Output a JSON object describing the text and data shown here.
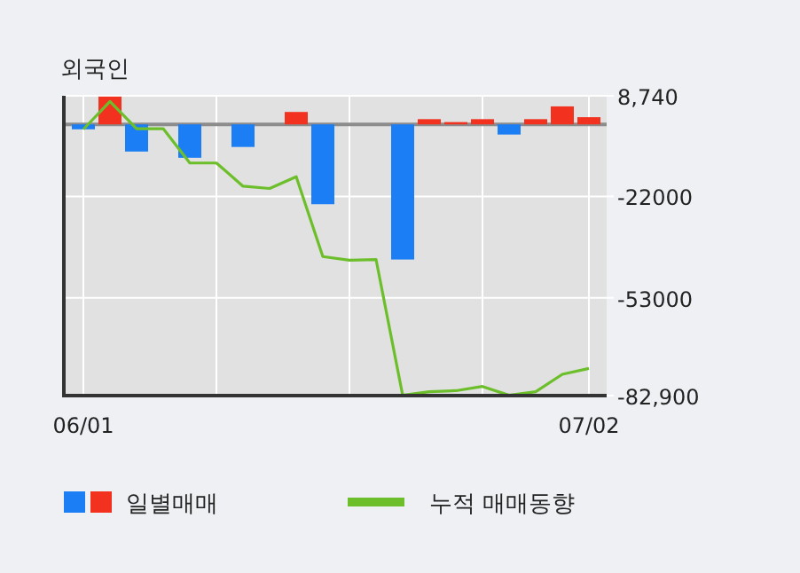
{
  "chart_data": {
    "type": "bar",
    "title": "외국인",
    "categories": [
      "06/01",
      null,
      null,
      null,
      null,
      null,
      null,
      null,
      null,
      null,
      null,
      null,
      null,
      null,
      null,
      null,
      null,
      null,
      null,
      "07/02"
    ],
    "series": [
      {
        "name": "일별매매",
        "values": [
          -1500,
          8500,
          -8300,
          0,
          -10200,
          0,
          -6900,
          0,
          3800,
          -24400,
          0,
          0,
          -41300,
          1600,
          700,
          1600,
          -3100,
          1600,
          5500,
          2200
        ],
        "colors": [
          "#1b7ef5",
          "#f2311e",
          "#1b7ef5",
          "#1b7ef5",
          "#1b7ef5",
          "#1b7ef5",
          "#1b7ef5",
          "#1b7ef5",
          "#f2311e",
          "#1b7ef5",
          "#1b7ef5",
          "#1b7ef5",
          "#1b7ef5",
          "#f2311e",
          "#f2311e",
          "#f2311e",
          "#1b7ef5",
          "#f2311e",
          "#f2311e",
          "#f2311e"
        ]
      },
      {
        "name": "누적 매매동향",
        "type": "line",
        "color": "#6cbf2a",
        "values": [
          -1500,
          7000,
          -1300,
          -1300,
          -11800,
          -11800,
          -18900,
          -19600,
          -16000,
          -40400,
          -41500,
          -41300,
          -82800,
          -81700,
          -81400,
          -80100,
          -82800,
          -81700,
          -76400,
          -74600
        ]
      }
    ],
    "ylim": [
      -82900,
      8740
    ],
    "yticks": [
      {
        "value": 8740,
        "label": "8,740"
      },
      -22000,
      -53000,
      {
        "value": -82900,
        "label": "-82,900"
      }
    ],
    "ref_lines": [
      {
        "axis": "y",
        "value": 0,
        "color": "#8c8c8c"
      }
    ],
    "grid": true,
    "legend": "bottom"
  }
}
